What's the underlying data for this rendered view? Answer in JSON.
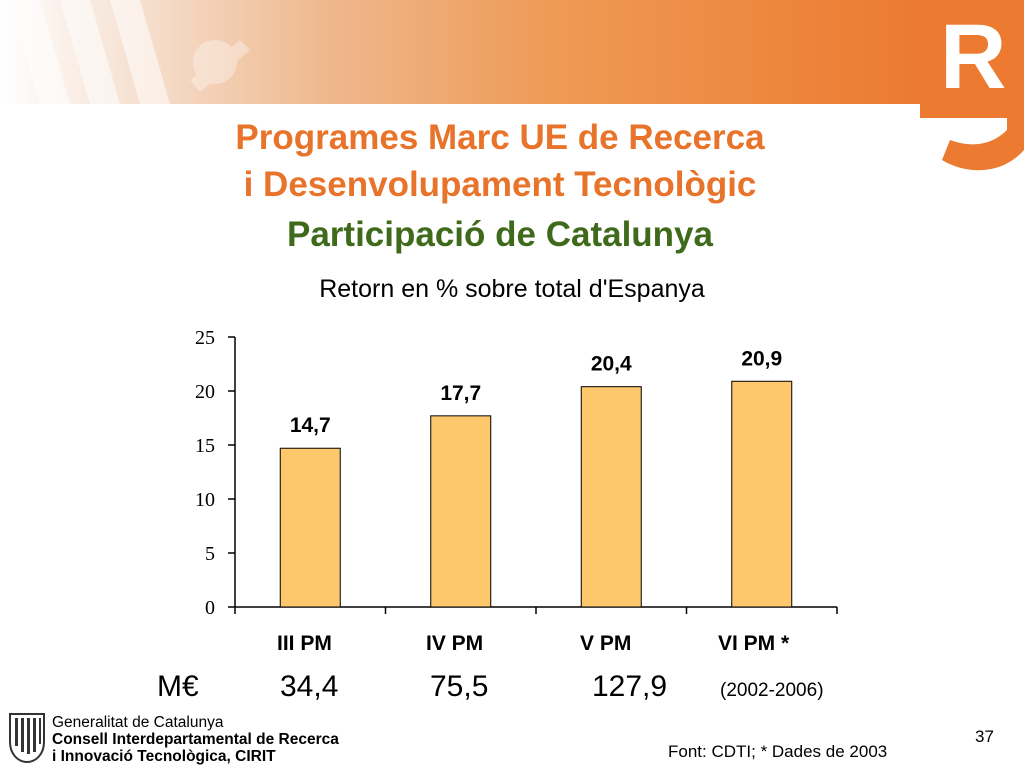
{
  "slide": {
    "title_line1": "Programes Marc UE de Recerca",
    "title_line2": "i Desenvolupament Tecnològic",
    "title_line3": "Participació de Catalunya",
    "subtitle": "Retorn en % sobre total d'Espanya",
    "meur_label": "M€",
    "meur_values": [
      "34,4",
      "75,5",
      "127,9"
    ],
    "period_note": "(2002-2006)",
    "footer_line1": "Generalitat de Catalunya",
    "footer_line2": "Consell Interdepartamental de Recerca",
    "footer_line3": "i Innovació Tecnològica, CIRIT",
    "page_number": "37",
    "source": "Font: CDTI; * Dades de 2003",
    "logo_letter": "R",
    "colors": {
      "title": "#e8732a",
      "title_green": "#3f6a1b",
      "bar": "#fdc86c",
      "accent": "#ec7a30"
    }
  },
  "chart_data": {
    "type": "bar",
    "title": "Retorn en % sobre total d'Espanya",
    "categories": [
      "III PM",
      "IV PM",
      "V PM",
      "VI PM *"
    ],
    "values": [
      14.7,
      17.7,
      20.4,
      20.9
    ],
    "value_labels": [
      "14,7",
      "17,7",
      "20,4",
      "20,9"
    ],
    "ylim": [
      0,
      25
    ],
    "yticks": [
      0,
      5,
      10,
      15,
      20,
      25
    ],
    "xlabel": "",
    "ylabel": "",
    "grid": false,
    "legend": "none"
  }
}
